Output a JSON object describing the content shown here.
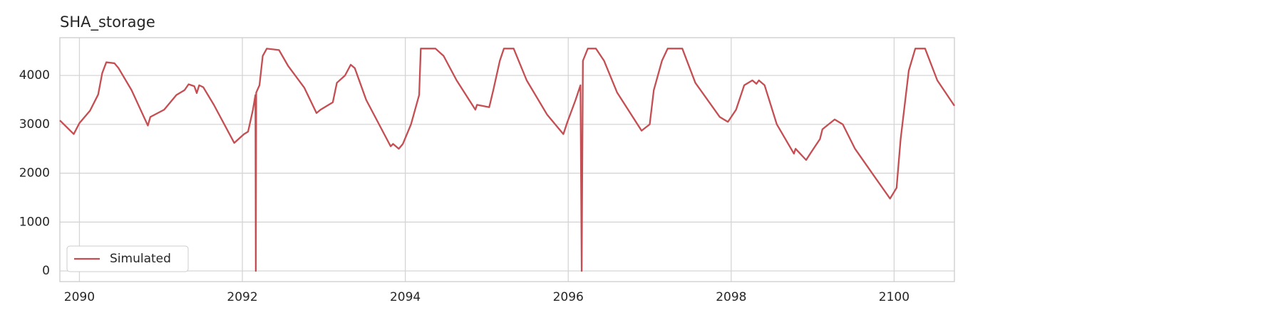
{
  "chart_data": {
    "type": "line",
    "title": "SHA_storage",
    "x": [
      2089.76,
      2089.93,
      2090.0,
      2090.13,
      2090.23,
      2090.28,
      2090.33,
      2090.43,
      2090.48,
      2090.64,
      2090.84,
      2090.87,
      2091.04,
      2091.19,
      2091.29,
      2091.34,
      2091.41,
      2091.44,
      2091.47,
      2091.52,
      2091.65,
      2091.9,
      2092.02,
      2092.07,
      2092.13,
      2092.16,
      2092.165,
      2092.17,
      2092.21,
      2092.25,
      2092.3,
      2092.45,
      2092.56,
      2092.76,
      2092.91,
      2092.96,
      2093.11,
      2093.16,
      2093.26,
      2093.33,
      2093.38,
      2093.52,
      2093.82,
      2093.85,
      2093.92,
      2093.97,
      2094.07,
      2094.17,
      2094.19,
      2094.37,
      2094.47,
      2094.63,
      2094.86,
      2094.88,
      2095.03,
      2095.08,
      2095.16,
      2095.21,
      2095.33,
      2095.49,
      2095.74,
      2095.94,
      2095.99,
      2096.09,
      2096.15,
      2096.165,
      2096.18,
      2096.24,
      2096.34,
      2096.44,
      2096.6,
      2096.9,
      2097.0,
      2097.05,
      2097.15,
      2097.22,
      2097.4,
      2097.56,
      2097.86,
      2097.96,
      2098.06,
      2098.16,
      2098.26,
      2098.31,
      2098.34,
      2098.41,
      2098.56,
      2098.77,
      2098.79,
      2098.92,
      2098.97,
      2099.09,
      2099.12,
      2099.27,
      2099.37,
      2099.52,
      2099.73,
      2099.95,
      2100.03,
      2100.08,
      2100.18,
      2100.26,
      2100.38,
      2100.53,
      2100.74
    ],
    "series": [
      {
        "name": "Simulated",
        "color": "#c44e52",
        "values": [
          3080,
          2800,
          3025,
          3280,
          3610,
          4050,
          4270,
          4250,
          4150,
          3700,
          2975,
          3150,
          3300,
          3600,
          3700,
          3820,
          3780,
          3640,
          3800,
          3760,
          3400,
          2620,
          2800,
          2850,
          3300,
          3600,
          0,
          3650,
          3800,
          4400,
          4550,
          4520,
          4200,
          3750,
          3230,
          3300,
          3450,
          3850,
          4000,
          4220,
          4150,
          3500,
          2550,
          2600,
          2500,
          2600,
          3000,
          3600,
          4550,
          4550,
          4400,
          3900,
          3300,
          3400,
          3350,
          3700,
          4300,
          4550,
          4550,
          3900,
          3200,
          2800,
          3050,
          3500,
          3800,
          0,
          4300,
          4550,
          4550,
          4300,
          3650,
          2870,
          3000,
          3700,
          4300,
          4550,
          4550,
          3850,
          3150,
          3050,
          3300,
          3800,
          3900,
          3830,
          3900,
          3800,
          3000,
          2400,
          2500,
          2270,
          2400,
          2700,
          2900,
          3100,
          3000,
          2500,
          2000,
          1480,
          1700,
          2700,
          4100,
          4550,
          4550,
          3900,
          3380
        ]
      }
    ],
    "xlim": [
      2089.76,
      2100.74
    ],
    "xticks": [
      2090,
      2092,
      2094,
      2096,
      2098,
      2100
    ],
    "ylim": [
      -218,
      4773
    ],
    "yticks": [
      0,
      1000,
      2000,
      3000,
      4000
    ],
    "grid": true,
    "legend": "lower left"
  }
}
